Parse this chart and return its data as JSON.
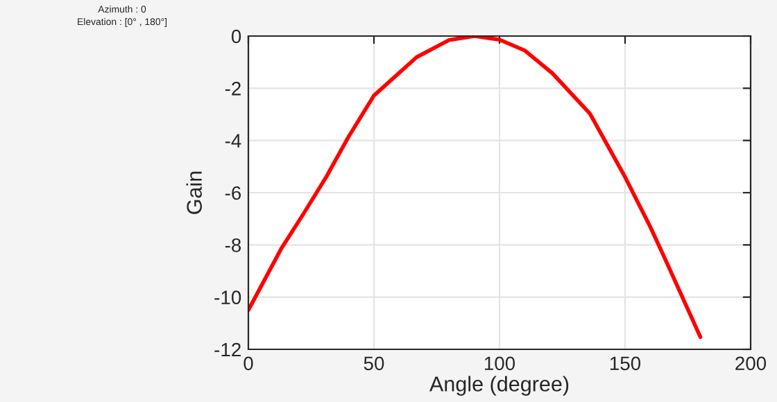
{
  "chart_data": {
    "type": "line",
    "xlabel": "Angle (degree)",
    "ylabel": "Gain",
    "annotations": [
      "Azimuth : 0",
      "Elevation : [0° , 180°]"
    ],
    "series": [
      {
        "color": "#ff0000",
        "x": [
          0,
          13,
          22,
          31,
          40,
          50,
          67,
          80,
          90,
          100,
          110,
          121,
          136,
          150,
          160,
          166.6,
          180
        ],
        "values": [
          -10.5,
          -8.16,
          -6.8,
          -5.4,
          -3.84,
          -2.28,
          -0.81,
          -0.15,
          0,
          -0.14,
          -0.55,
          -1.42,
          -2.97,
          -5.4,
          -7.3,
          -8.68,
          -11.53
        ]
      }
    ],
    "xlim": [
      0,
      200
    ],
    "xticks": [
      0,
      50,
      100,
      150,
      200
    ],
    "ylim": [
      -12,
      0
    ],
    "yticks": [
      -12,
      -10,
      -8,
      -6,
      -4,
      -2,
      0
    ],
    "grid": true,
    "line_style": "solid",
    "marker": "none"
  }
}
